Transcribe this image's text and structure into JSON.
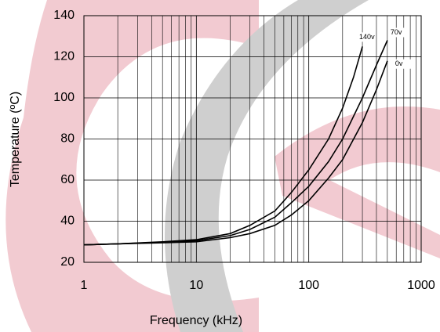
{
  "chart_data": {
    "type": "line",
    "x_label": "Frequency (kHz)",
    "y_label": "Temperature (ºC)",
    "log_x": true,
    "grid": true,
    "xlim": [
      1,
      1000
    ],
    "xticks": [
      1,
      10,
      100,
      1000
    ],
    "x_minor_ticks": [
      2,
      3,
      4,
      5,
      6,
      7,
      8,
      9,
      20,
      30,
      40,
      50,
      60,
      70,
      80,
      90,
      200,
      300,
      400,
      500,
      600,
      700,
      800,
      900
    ],
    "ylim": [
      20,
      140
    ],
    "yticks": [
      20,
      40,
      60,
      80,
      100,
      120,
      140
    ],
    "series": [
      {
        "name": "140v",
        "color": "#000000",
        "x": [
          1,
          2,
          5,
          10,
          20,
          30,
          50,
          70,
          100,
          150,
          200,
          250,
          300
        ],
        "values": [
          28.5,
          29,
          30,
          31,
          34,
          38,
          45,
          54,
          65,
          80,
          95,
          110,
          125
        ]
      },
      {
        "name": "70v",
        "color": "#000000",
        "x": [
          1,
          2,
          5,
          10,
          20,
          30,
          50,
          70,
          100,
          150,
          200,
          300,
          400,
          500
        ],
        "values": [
          28.5,
          29,
          29.8,
          30.5,
          33,
          36,
          42,
          49,
          57,
          69,
          80,
          100,
          116,
          128
        ]
      },
      {
        "name": "0v",
        "color": "#000000",
        "x": [
          1,
          2,
          5,
          10,
          20,
          30,
          50,
          70,
          100,
          150,
          200,
          300,
          400,
          500
        ],
        "values": [
          28.5,
          29,
          29.5,
          30,
          32,
          34,
          38,
          43,
          50,
          61,
          70,
          88,
          104,
          118
        ]
      }
    ]
  }
}
